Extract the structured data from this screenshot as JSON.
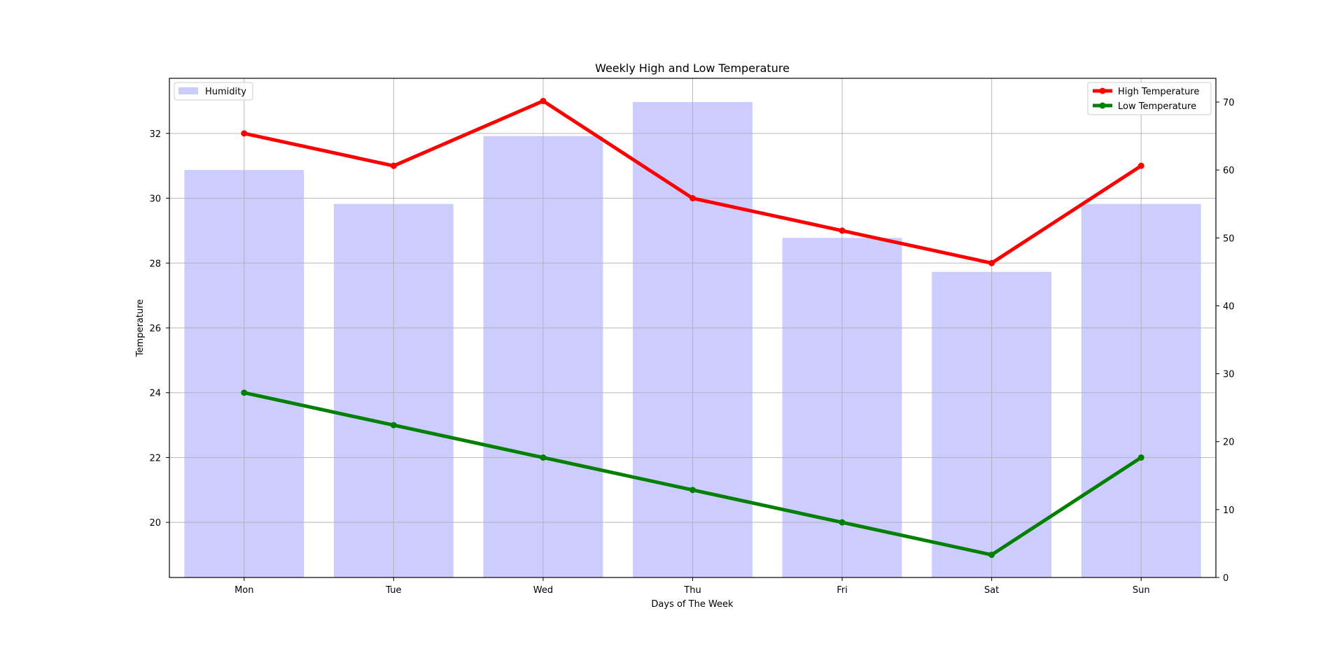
{
  "chart_data": {
    "type": "bar+line",
    "title": "Weekly High and Low Temperature",
    "xlabel": "Days of The Week",
    "ylabel": "Temperature",
    "y2label": "",
    "categories": [
      "Mon",
      "Tue",
      "Wed",
      "Thu",
      "Fri",
      "Sat",
      "Sun"
    ],
    "ylim": [
      18.3,
      33.7
    ],
    "yticks": [
      20,
      22,
      24,
      26,
      28,
      30,
      32
    ],
    "y2lim": [
      0,
      73.5
    ],
    "y2ticks": [
      0,
      10,
      20,
      30,
      40,
      50,
      60,
      70
    ],
    "grid": true,
    "bars": {
      "name": "Humidity",
      "axis": "right",
      "values": [
        60,
        55,
        65,
        70,
        50,
        45,
        55
      ],
      "color": "#ccccff"
    },
    "series": [
      {
        "name": "High Temperature",
        "axis": "left",
        "values": [
          32,
          31,
          33,
          30,
          29,
          28,
          31
        ],
        "color": "#ff0000"
      },
      {
        "name": "Low Temperature",
        "axis": "left",
        "values": [
          24,
          23,
          22,
          21,
          20,
          19,
          22
        ],
        "color": "#008000"
      }
    ],
    "legends": [
      {
        "placement": "upper-left",
        "entries": [
          "Humidity"
        ]
      },
      {
        "placement": "upper-right",
        "entries": [
          "High Temperature",
          "Low Temperature"
        ]
      }
    ]
  }
}
